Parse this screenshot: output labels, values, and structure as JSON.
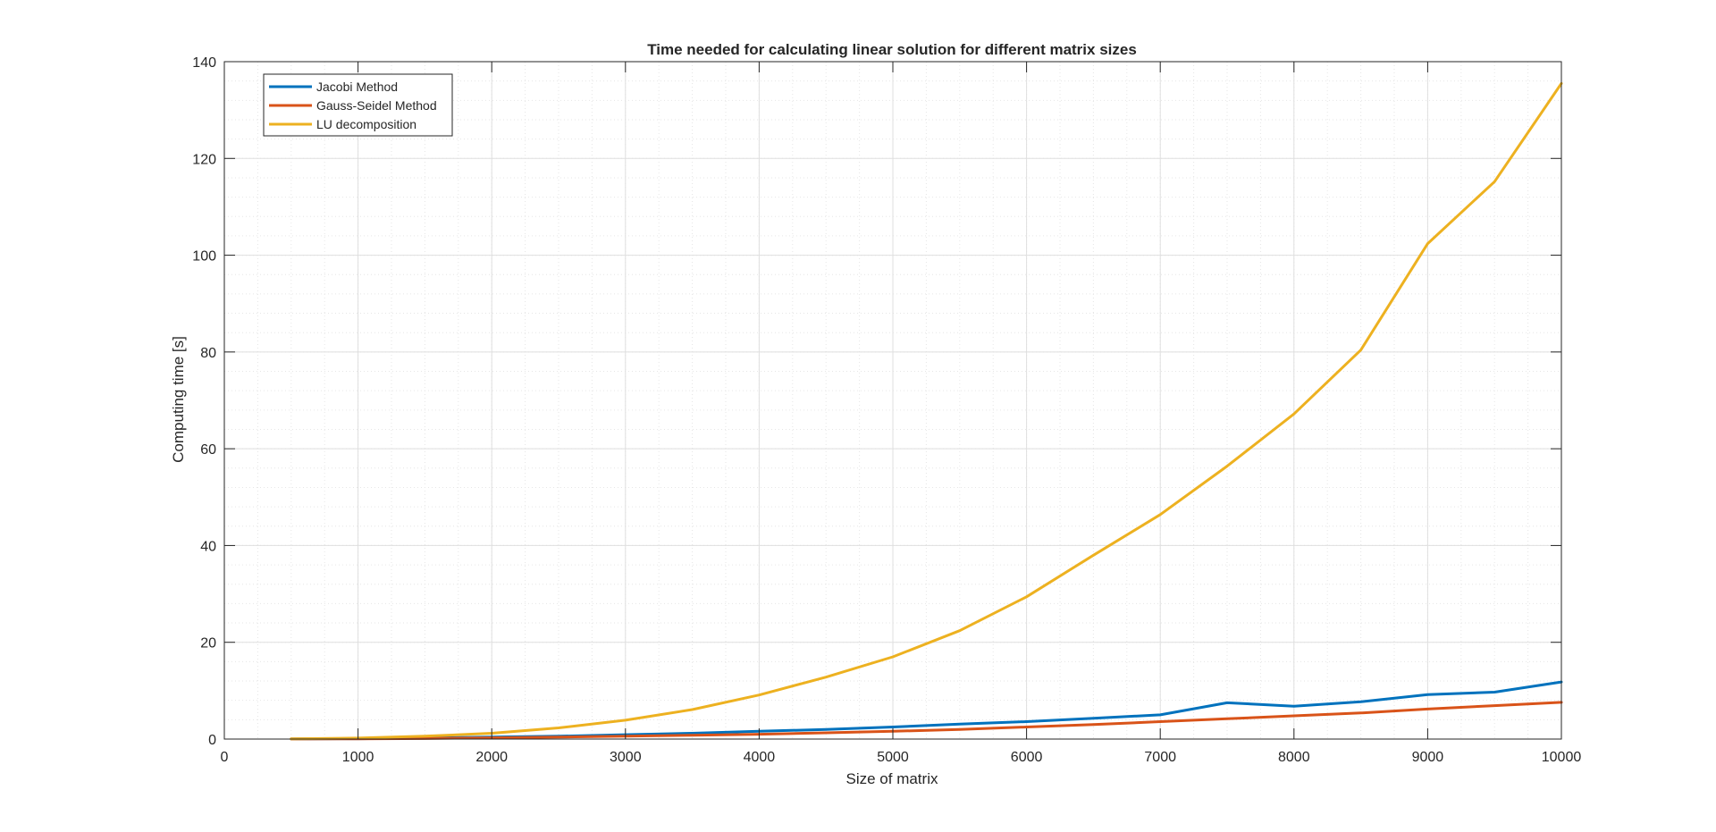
{
  "chart_data": {
    "type": "line",
    "title": "Time needed for calculating linear solution for different matrix sizes",
    "xlabel": "Size of matrix",
    "ylabel": "Computing time [s]",
    "xlim": [
      0,
      10000
    ],
    "ylim": [
      0,
      140
    ],
    "xticks": [
      0,
      1000,
      2000,
      3000,
      4000,
      5000,
      6000,
      7000,
      8000,
      9000,
      10000
    ],
    "yticks": [
      0,
      20,
      40,
      60,
      80,
      100,
      120,
      140
    ],
    "grid": true,
    "minor_grid": true,
    "legend_position": "top-left",
    "x": [
      500,
      1000,
      1500,
      2000,
      2500,
      3000,
      3500,
      4000,
      4500,
      5000,
      5500,
      6000,
      6500,
      7000,
      7500,
      8000,
      8500,
      9000,
      9500,
      10000
    ],
    "series": [
      {
        "name": "Jacobi Method",
        "color": "#0072BD",
        "values": [
          0.02,
          0.08,
          0.2,
          0.4,
          0.6,
          0.9,
          1.2,
          1.6,
          2.0,
          2.5,
          3.1,
          3.6,
          4.3,
          5.0,
          7.5,
          6.8,
          7.7,
          9.2,
          9.7,
          11.8
        ]
      },
      {
        "name": "Gauss-Seidel Method",
        "color": "#D95319",
        "values": [
          0.01,
          0.05,
          0.12,
          0.25,
          0.4,
          0.6,
          0.8,
          1.0,
          1.3,
          1.6,
          2.0,
          2.5,
          3.0,
          3.6,
          4.2,
          4.8,
          5.4,
          6.2,
          6.9,
          7.6
        ]
      },
      {
        "name": "LU decomposition",
        "color": "#EDB120",
        "values": [
          0.05,
          0.2,
          0.6,
          1.2,
          2.3,
          3.9,
          6.1,
          9.1,
          12.8,
          17.0,
          22.4,
          29.4,
          38.0,
          46.4,
          56.4,
          67.2,
          80.4,
          102.4,
          115.2,
          135.5
        ]
      }
    ]
  }
}
